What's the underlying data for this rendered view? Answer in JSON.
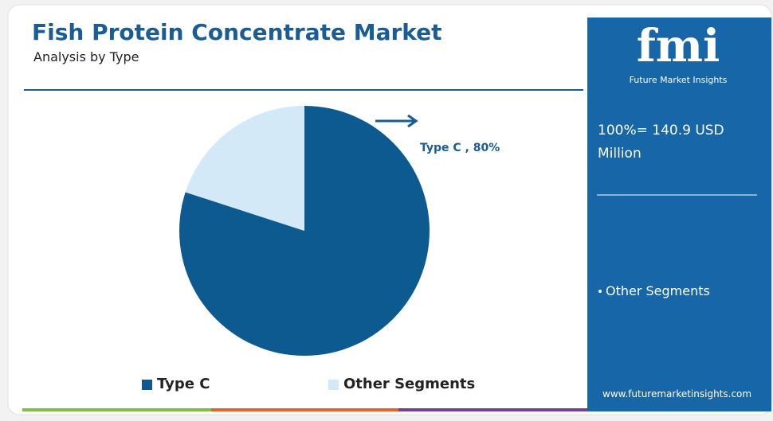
{
  "chart_data": {
    "type": "pie",
    "title": "Fish Protein Concentrate Market",
    "subtitle": "Analysis by Type",
    "categories": [
      "Type C",
      "Other Segments"
    ],
    "values": [
      80,
      20
    ],
    "value_labels": [
      "Type C , 80%",
      null
    ],
    "colors": [
      "#0d5a90",
      "#d4e9f7"
    ],
    "legend": "bottom"
  },
  "side_panel": {
    "logo": "fmi",
    "brand": "Future Market Insights",
    "total_label": "100%= 140.9 USD Million",
    "website": "www.futuremarketinsights.com"
  }
}
